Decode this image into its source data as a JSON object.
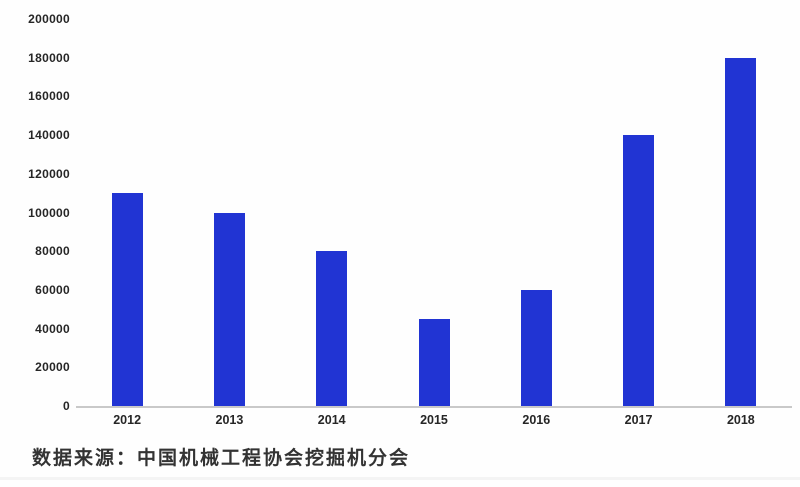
{
  "chart_data": {
    "type": "bar",
    "title": "",
    "xlabel": "",
    "ylabel": "",
    "categories": [
      "2012",
      "2013",
      "2014",
      "2015",
      "2016",
      "2017",
      "2018"
    ],
    "values": [
      110000,
      100000,
      80000,
      45000,
      60000,
      140000,
      180000
    ],
    "ylim": [
      0,
      200000
    ],
    "yticks": [
      0,
      20000,
      40000,
      60000,
      80000,
      100000,
      120000,
      140000,
      160000,
      180000,
      200000
    ],
    "grid": false,
    "legend": false,
    "bar_color": "#2134d3",
    "axis_line_color": "#c9c9c9",
    "tick_label_color": "#262626"
  },
  "footer": {
    "source_note": "数据来源：中国机械工程协会挖掘机分会"
  }
}
